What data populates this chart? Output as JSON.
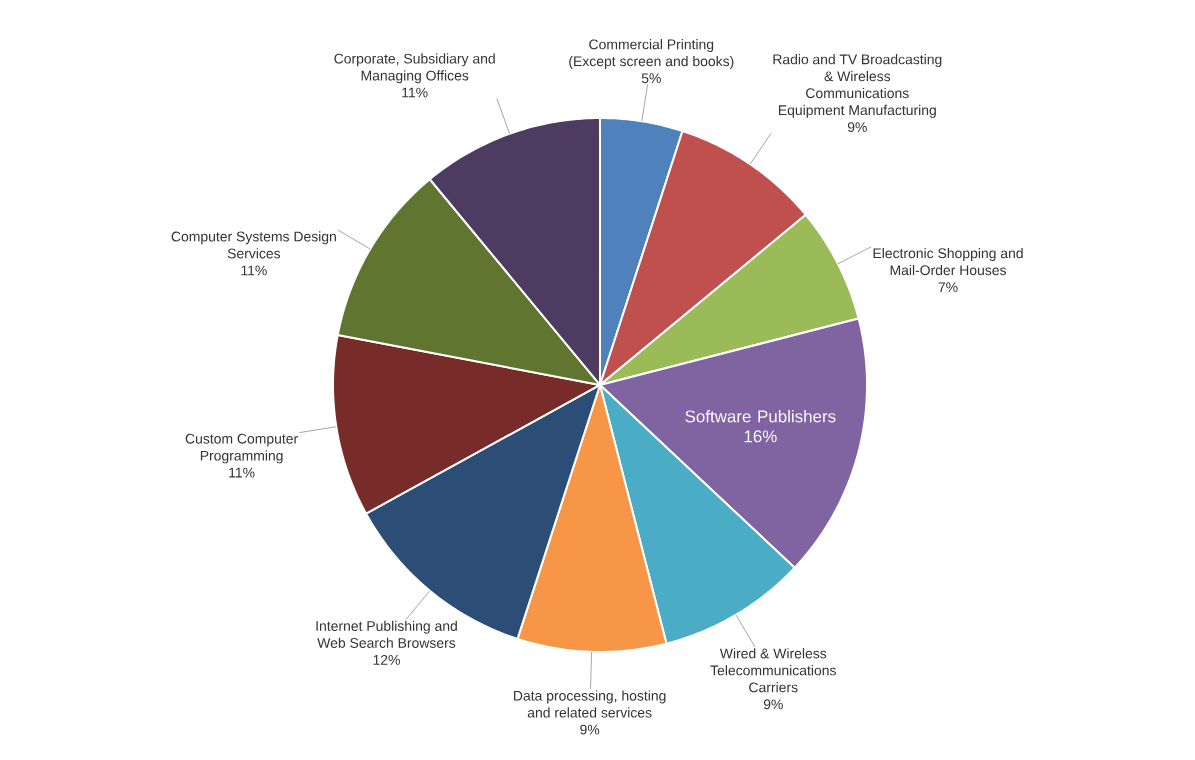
{
  "chart_data": {
    "type": "pie",
    "categories": [
      "Commercial Printing (Except screen and books)",
      "Radio and TV Broadcasting & Wireless Communications Equipment Manufacturing",
      "Electronic Shopping and Mail-Order Houses",
      "Software Publishers",
      "Wired & Wireless Telecommunications Carriers",
      "Data processing, hosting and related services",
      "Internet Publishing and Web Search Browsers",
      "Custom Computer Programming",
      "Computer Systems Design Services",
      "Corporate, Subsidiary and Managing Offices"
    ],
    "values": [
      5,
      9,
      7,
      16,
      9,
      9,
      12,
      11,
      11,
      11
    ],
    "value_labels": [
      "5%",
      "9%",
      "7%",
      "16%",
      "9%",
      "9%",
      "12%",
      "11%",
      "11%",
      "11%"
    ],
    "colors": [
      "#4f81bd",
      "#c0504d",
      "#9bbb59",
      "#8064a2",
      "#4bacc6",
      "#f79646",
      "#2c4d75",
      "#772c2a",
      "#5f7530",
      "#4d3b62"
    ]
  }
}
